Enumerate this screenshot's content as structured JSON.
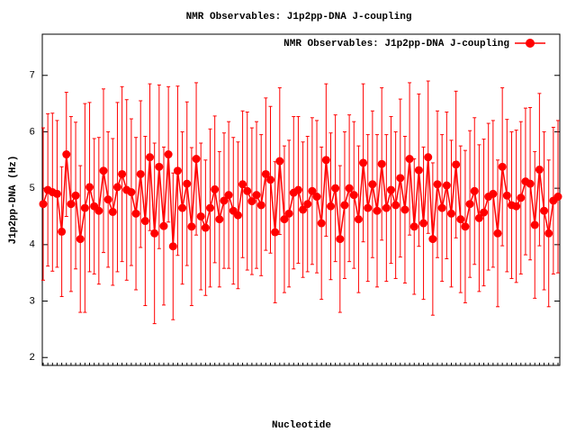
{
  "chart_data": {
    "type": "errorbar-line",
    "title": "NMR Observables: J1p2pp-DNA J-coupling",
    "x_label": "Nucleotide",
    "y_label": "J1p2pp-DNA (Hz)",
    "categories": [
      null,
      null,
      null,
      null,
      null,
      null,
      null,
      null,
      null,
      null,
      null,
      null,
      null,
      null,
      null,
      null,
      null,
      null,
      null,
      null,
      null,
      null,
      null,
      null,
      null,
      null,
      null,
      null,
      null,
      null,
      null,
      null,
      null,
      null,
      null,
      null,
      null,
      null,
      null,
      null,
      null,
      null,
      null,
      null,
      null,
      null,
      null,
      null,
      null,
      null,
      null,
      null,
      null,
      null,
      null,
      null,
      null,
      null,
      null,
      null,
      null,
      null,
      null,
      null,
      null,
      null,
      null,
      null,
      null,
      null,
      null,
      null,
      null,
      null,
      null,
      null,
      null,
      null,
      null,
      null,
      null,
      null,
      null,
      null,
      null,
      null,
      null,
      null,
      null,
      null,
      null,
      null,
      null,
      null,
      null,
      null,
      null,
      null,
      null,
      null,
      null,
      null,
      null,
      null,
      null,
      null,
      null,
      null,
      null,
      null,
      null,
      null
    ],
    "series": [
      {
        "name": "NMR Observables: J1p2pp-DNA J-coupling",
        "color": "#ff0000",
        "values": [
          4.72,
          4.97,
          4.93,
          4.9,
          4.23,
          5.6,
          4.72,
          4.87,
          4.1,
          4.65,
          5.02,
          4.68,
          4.6,
          5.31,
          4.8,
          4.58,
          5.02,
          5.25,
          4.97,
          4.93,
          4.55,
          5.25,
          4.42,
          5.55,
          4.2,
          5.38,
          4.33,
          5.6,
          3.97,
          5.31,
          4.65,
          5.08,
          4.32,
          5.52,
          4.5,
          4.3,
          4.65,
          4.98,
          4.45,
          4.78,
          4.88,
          4.6,
          4.52,
          5.07,
          4.95,
          4.77,
          4.88,
          4.7,
          5.25,
          5.15,
          4.22,
          5.48,
          4.45,
          4.55,
          4.92,
          4.97,
          4.62,
          4.72,
          4.95,
          4.85,
          4.38,
          5.5,
          4.68,
          5.0,
          4.1,
          4.7,
          5.0,
          4.88,
          4.45,
          5.45,
          4.65,
          5.07,
          4.6,
          5.43,
          4.65,
          4.97,
          4.7,
          5.18,
          4.62,
          5.52,
          4.32,
          5.32,
          4.38,
          5.55,
          4.1,
          5.07,
          4.65,
          5.05,
          4.55,
          5.42,
          4.45,
          4.32,
          4.72,
          4.95,
          4.47,
          4.57,
          4.85,
          4.9,
          4.2,
          5.38,
          4.87,
          4.7,
          4.68,
          4.83,
          5.12,
          5.08,
          4.35,
          5.33,
          4.6,
          4.2,
          4.78,
          4.85
        ],
        "errors": [
          1.35,
          1.35,
          1.4,
          1.3,
          1.15,
          1.1,
          1.55,
          1.3,
          1.3,
          1.85,
          1.5,
          1.2,
          1.3,
          1.45,
          1.2,
          1.3,
          1.5,
          1.55,
          1.6,
          1.3,
          1.35,
          1.3,
          1.5,
          1.3,
          1.6,
          1.45,
          1.4,
          1.2,
          1.3,
          1.5,
          1.35,
          1.45,
          1.4,
          1.35,
          1.3,
          1.2,
          1.4,
          1.3,
          1.2,
          1.2,
          1.3,
          1.3,
          1.3,
          1.3,
          1.4,
          1.3,
          1.3,
          1.25,
          1.35,
          1.3,
          1.25,
          1.3,
          1.3,
          1.3,
          1.35,
          1.3,
          1.2,
          1.2,
          1.3,
          1.35,
          1.35,
          1.35,
          1.3,
          1.3,
          1.3,
          1.3,
          1.3,
          1.3,
          1.3,
          1.4,
          1.3,
          1.3,
          1.35,
          1.35,
          1.3,
          1.3,
          1.3,
          1.4,
          1.3,
          1.35,
          1.2,
          1.35,
          1.35,
          1.35,
          1.35,
          1.3,
          1.3,
          1.3,
          1.3,
          1.3,
          1.3,
          1.35,
          1.3,
          1.3,
          1.3,
          1.3,
          1.3,
          1.3,
          1.3,
          1.4,
          1.35,
          1.3,
          1.35,
          1.35,
          1.3,
          1.35,
          1.3,
          1.35,
          1.4,
          1.3,
          1.3,
          1.35
        ]
      }
    ],
    "ylim": [
      1.86,
      7.73
    ],
    "yticks": [
      2,
      3,
      4,
      5,
      6,
      7
    ],
    "legend": "top-right"
  }
}
